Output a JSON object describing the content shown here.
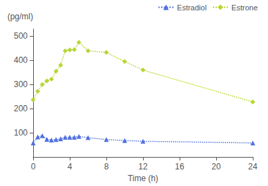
{
  "chart_data": {
    "type": "line",
    "xlabel": "Time (h)",
    "ylabel": "(pg/ml)",
    "x": [
      0,
      0.5,
      1,
      1.5,
      2,
      2.5,
      3,
      3.5,
      4,
      4.5,
      5,
      6,
      8,
      10,
      12,
      24
    ],
    "series": [
      {
        "name": "Estradiol",
        "marker": "triangle",
        "line_style": "dotted",
        "values": [
          58,
          83,
          88,
          73,
          70,
          72,
          75,
          82,
          82,
          82,
          85,
          80,
          72,
          68,
          65,
          58
        ]
      },
      {
        "name": "Estrone",
        "marker": "diamond",
        "line_style": "dotted",
        "values": [
          237,
          272,
          300,
          315,
          322,
          355,
          380,
          440,
          443,
          445,
          475,
          440,
          433,
          395,
          360,
          228
        ]
      }
    ],
    "xlim": [
      0,
      24
    ],
    "xticks": [
      0,
      4,
      8,
      12,
      16,
      20,
      24
    ],
    "ylim": [
      0,
      530
    ],
    "yticks": [
      100,
      200,
      300,
      400,
      500
    ],
    "legend": "upper right",
    "grid": false
  }
}
